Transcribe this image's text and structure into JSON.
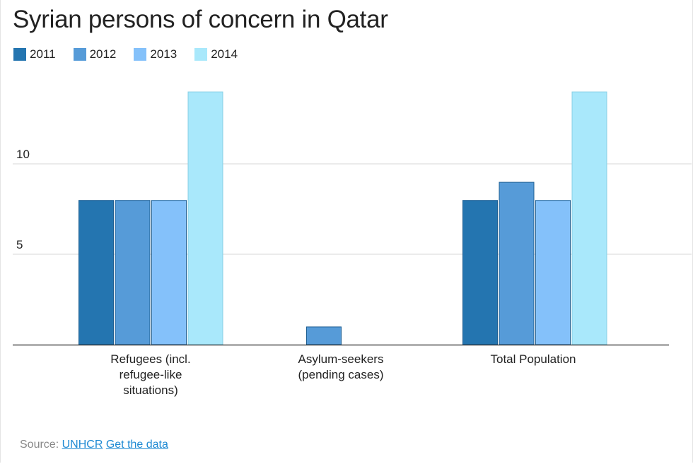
{
  "chart_data": {
    "type": "bar",
    "title": "Syrian persons of concern in Qatar",
    "xlabel": "",
    "ylabel": "",
    "categories": [
      [
        "Refugees (incl.",
        "refugee-like",
        "situations)"
      ],
      [
        "Asylum-seekers",
        "(pending cases)"
      ],
      [
        "Total Population"
      ]
    ],
    "series": [
      {
        "name": "2011",
        "color": "#2475b0",
        "values": [
          8,
          null,
          8
        ]
      },
      {
        "name": "2012",
        "color": "#569bd8",
        "values": [
          8,
          1,
          9
        ]
      },
      {
        "name": "2013",
        "color": "#84c1fa",
        "values": [
          8,
          null,
          8
        ]
      },
      {
        "name": "2014",
        "color": "#a9e8fb",
        "values": [
          14,
          null,
          14
        ]
      }
    ],
    "yticks": [
      "5",
      "10"
    ],
    "ytick_values": [
      5,
      10
    ],
    "ylim": [
      0,
      15
    ],
    "grid": true,
    "legend_position": "top-left"
  },
  "source": {
    "label": "Source:",
    "link1": "UNHCR",
    "link2": "Get the data"
  }
}
